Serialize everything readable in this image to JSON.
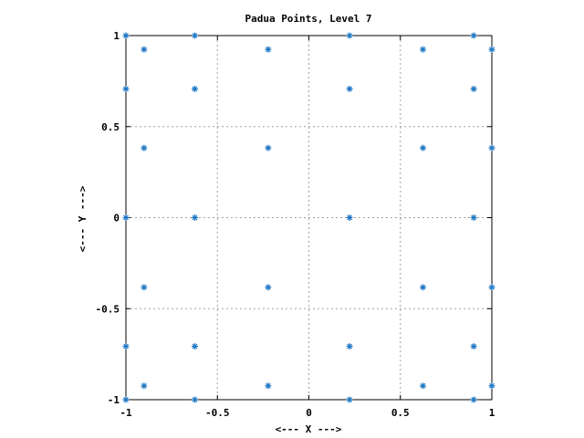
{
  "chart_data": {
    "type": "scatter",
    "title": "Padua Points, Level 7",
    "xlabel": "<--- X --->",
    "ylabel": "<--- Y --->",
    "xlim": [
      -1,
      1
    ],
    "ylim": [
      -1,
      1
    ],
    "xticks": [
      -1,
      -0.5,
      0,
      0.5,
      1
    ],
    "yticks": [
      -1,
      -0.5,
      0,
      0.5,
      1
    ],
    "xtick_labels": [
      "-1",
      "-0.5",
      "0",
      "0.5",
      "1"
    ],
    "ytick_labels": [
      "-1",
      "-0.5",
      "0",
      "0.5",
      "1"
    ],
    "grid": true,
    "marker": "asterisk",
    "color": "#1f77c4",
    "series": [
      {
        "points": [
          [
            -1,
            1
          ],
          [
            -1,
            0.7071
          ],
          [
            -1,
            0
          ],
          [
            -1,
            -0.7071
          ],
          [
            -1,
            -1
          ],
          [
            -0.901,
            0.9239
          ],
          [
            -0.901,
            0.3827
          ],
          [
            -0.901,
            -0.3827
          ],
          [
            -0.901,
            -0.9239
          ],
          [
            -0.6235,
            1
          ],
          [
            -0.6235,
            0.7071
          ],
          [
            -0.6235,
            0
          ],
          [
            -0.6235,
            -0.7071
          ],
          [
            -0.6235,
            -1
          ],
          [
            -0.2225,
            0.9239
          ],
          [
            -0.2225,
            0.3827
          ],
          [
            -0.2225,
            -0.3827
          ],
          [
            -0.2225,
            -0.9239
          ],
          [
            0.2225,
            1
          ],
          [
            0.2225,
            0.7071
          ],
          [
            0.2225,
            0
          ],
          [
            0.2225,
            -0.7071
          ],
          [
            0.2225,
            -1
          ],
          [
            0.6235,
            0.9239
          ],
          [
            0.6235,
            0.3827
          ],
          [
            0.6235,
            -0.3827
          ],
          [
            0.6235,
            -0.9239
          ],
          [
            0.901,
            1
          ],
          [
            0.901,
            0.7071
          ],
          [
            0.901,
            0
          ],
          [
            0.901,
            -0.7071
          ],
          [
            0.901,
            -1
          ],
          [
            1,
            0.9239
          ],
          [
            1,
            0.3827
          ],
          [
            1,
            -0.3827
          ],
          [
            1,
            -0.9239
          ]
        ]
      }
    ]
  }
}
